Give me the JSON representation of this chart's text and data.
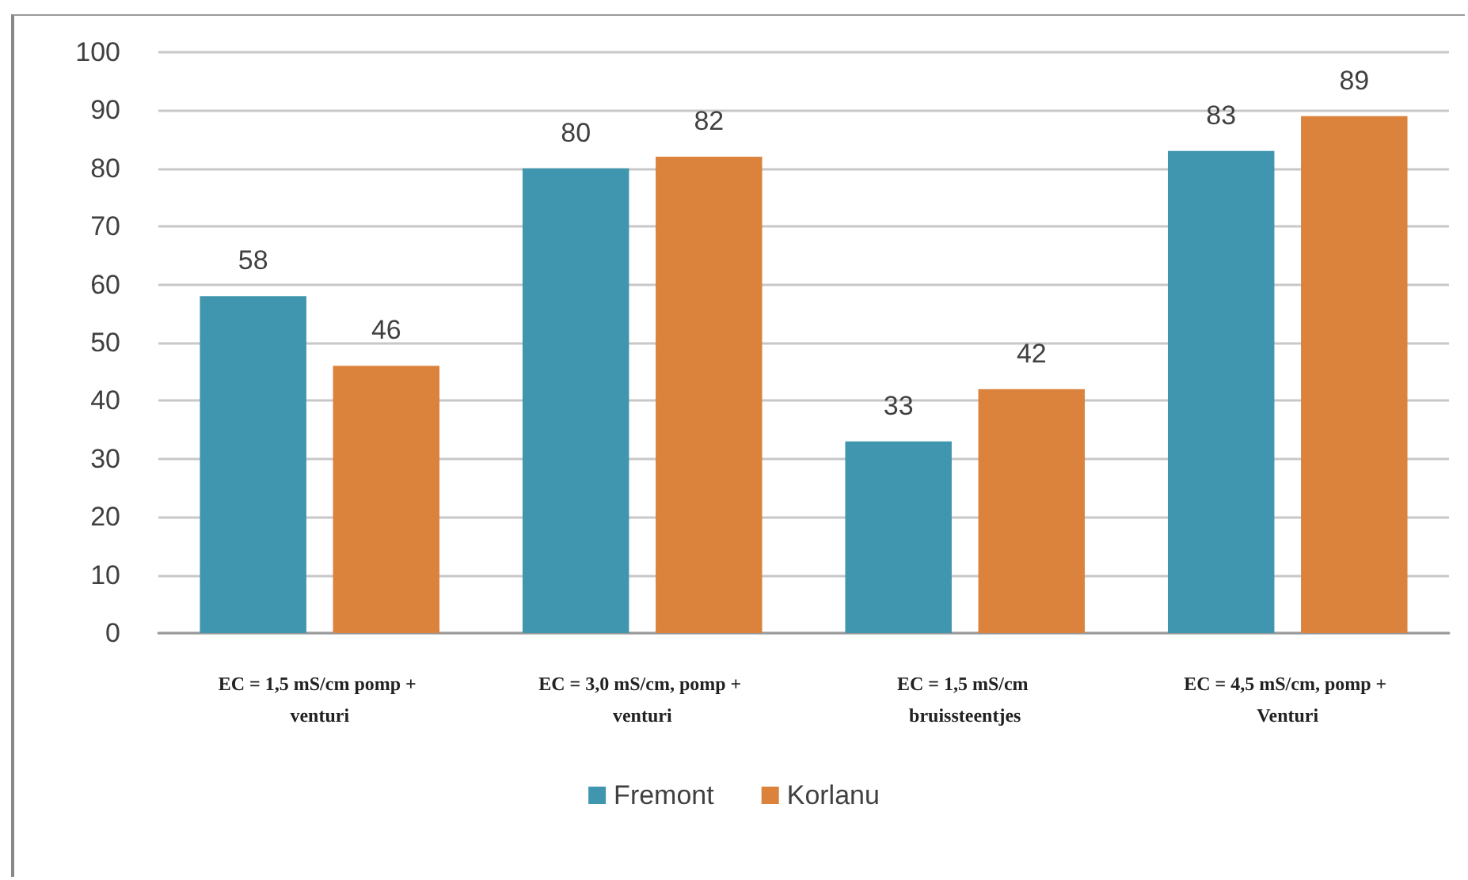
{
  "chart_data": {
    "type": "bar",
    "categories": [
      "EC = 1,5 mS/cm pomp + venturi",
      "EC = 3,0 mS/cm, pomp + venturi",
      "EC = 1,5 mS/cm bruissteentjes",
      "EC = 4,5 mS/cm, pomp + Venturi"
    ],
    "series": [
      {
        "name": "Fremont",
        "color": "#4096ae",
        "values": [
          58,
          80,
          33,
          83
        ]
      },
      {
        "name": "Korlanu",
        "color": "#db823c",
        "values": [
          46,
          82,
          42,
          89
        ]
      }
    ],
    "ylim": [
      0,
      100
    ],
    "yticks": [
      0,
      10,
      20,
      30,
      40,
      50,
      60,
      70,
      80,
      90,
      100
    ],
    "grid": "y",
    "legend": "bottom",
    "data_labels": true
  }
}
